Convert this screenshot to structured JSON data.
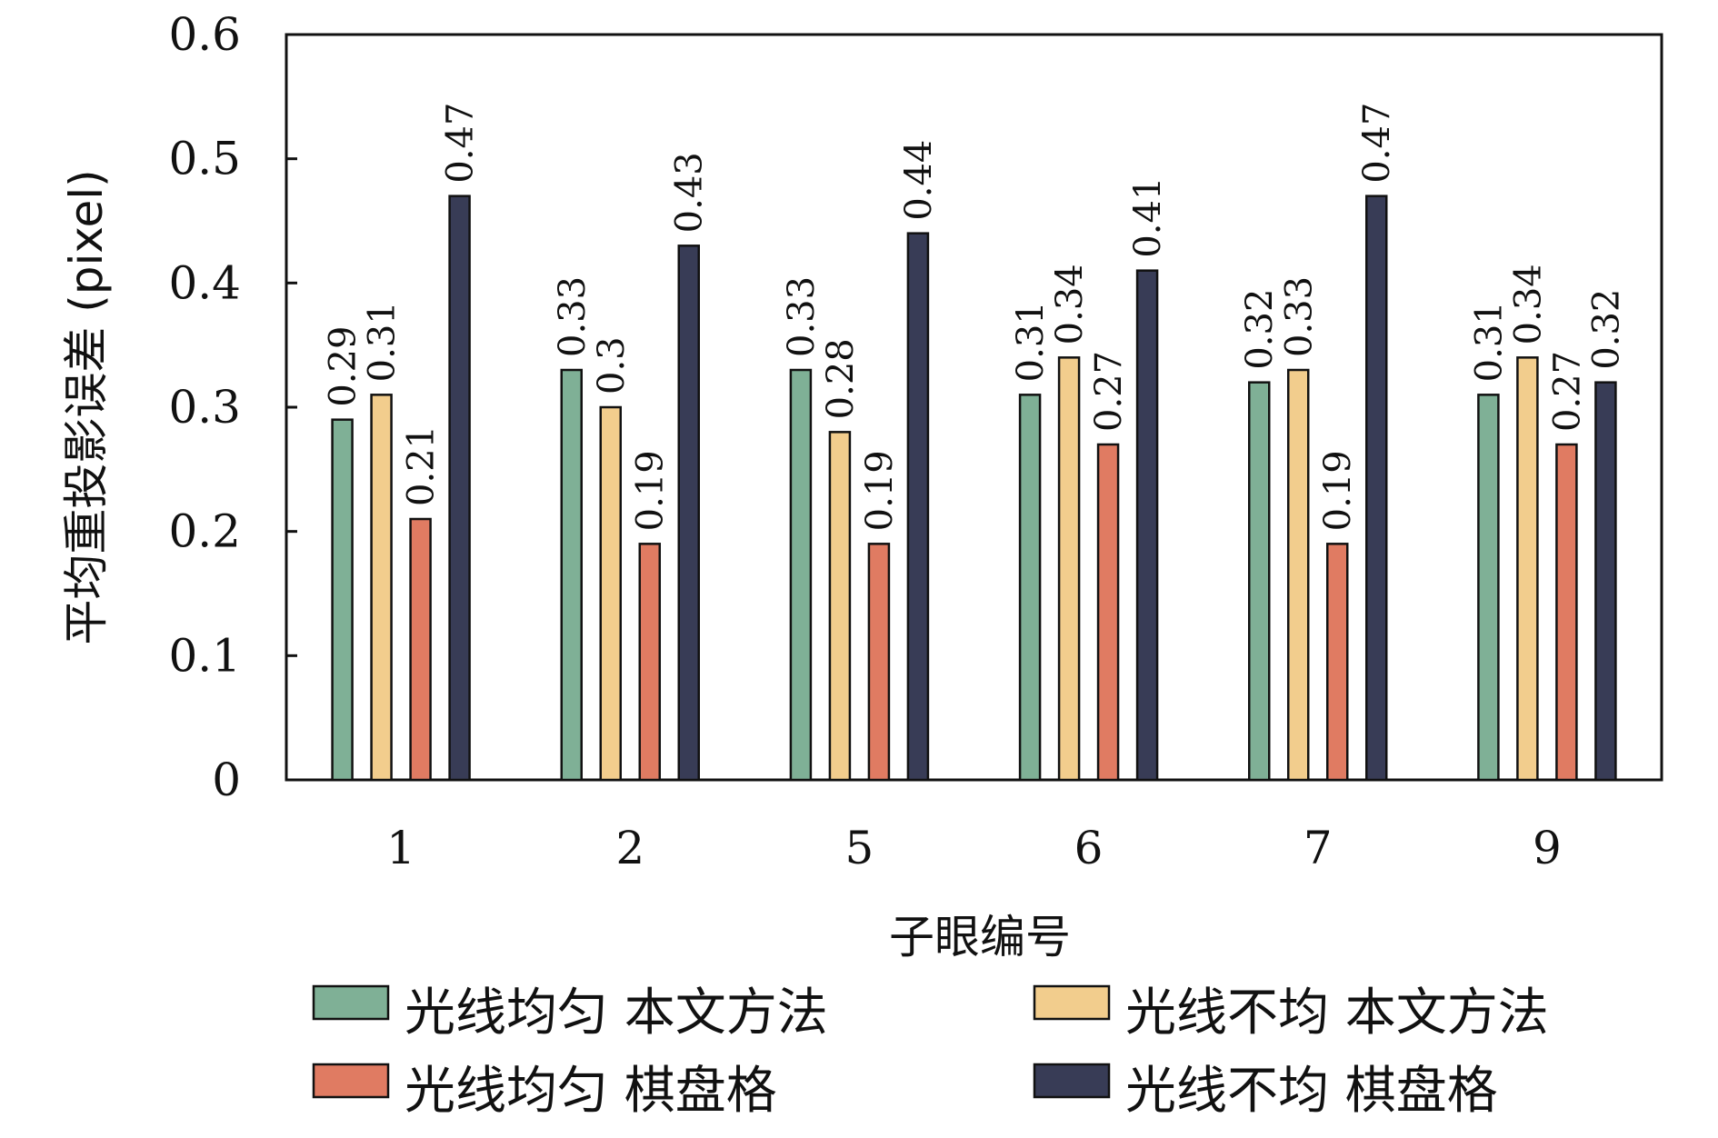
{
  "chart_data": {
    "type": "bar",
    "title": "",
    "xlabel": "子眼编号",
    "ylabel": "平均重投影误差 (pixel)",
    "ylim": [
      0,
      0.6
    ],
    "yticks": [
      "0",
      "0.1",
      "0.2",
      "0.3",
      "0.4",
      "0.5",
      "0.6"
    ],
    "categories": [
      "1",
      "2",
      "5",
      "6",
      "7",
      "9"
    ],
    "grid": false,
    "legend_position": "bottom",
    "series": [
      {
        "name": "光线均匀 本文方法",
        "color": "#7fb096",
        "values": [
          0.29,
          0.33,
          0.33,
          0.31,
          0.32,
          0.31
        ],
        "labels": [
          "0.29",
          "0.33",
          "0.33",
          "0.31",
          "0.32",
          "0.31"
        ]
      },
      {
        "name": "光线不均 本文方法",
        "color": "#f2cd8d",
        "values": [
          0.31,
          0.3,
          0.28,
          0.34,
          0.33,
          0.34
        ],
        "labels": [
          "0.31",
          "0.3",
          "0.28",
          "0.34",
          "0.33",
          "0.34"
        ]
      },
      {
        "name": "光线均匀 棋盘格",
        "color": "#e07b62",
        "values": [
          0.21,
          0.19,
          0.19,
          0.27,
          0.19,
          0.27
        ],
        "labels": [
          "0.21",
          "0.19",
          "0.19",
          "0.27",
          "0.19",
          "0.27"
        ]
      },
      {
        "name": "光线不均 棋盘格",
        "color": "#383c56",
        "values": [
          0.47,
          0.43,
          0.44,
          0.41,
          0.47,
          0.32
        ],
        "labels": [
          "0.47",
          "0.43",
          "0.44",
          "0.41",
          "0.47",
          "0.32"
        ]
      }
    ]
  }
}
